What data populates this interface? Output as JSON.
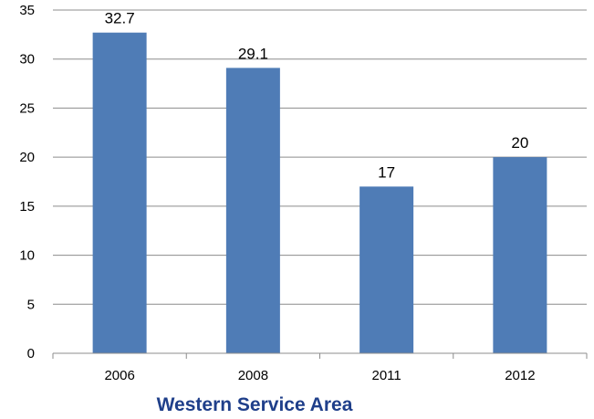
{
  "chart_data": {
    "type": "bar",
    "categories": [
      "2006",
      "2008",
      "2011",
      "2012"
    ],
    "values": [
      32.7,
      29.1,
      17,
      20
    ],
    "data_labels": [
      "32.7",
      "29.1",
      "17",
      "20"
    ],
    "xlabel": "Western Service Area",
    "ylabel": "",
    "ylim": [
      0,
      35
    ],
    "yticks": [
      "0",
      "5",
      "10",
      "15",
      "20",
      "25",
      "30",
      "35"
    ],
    "grid": true,
    "legend": "none",
    "colors": {
      "bar": "#4f7cb6",
      "grid": "#8c8c8c",
      "xlabel": "#1f3f8a"
    }
  }
}
